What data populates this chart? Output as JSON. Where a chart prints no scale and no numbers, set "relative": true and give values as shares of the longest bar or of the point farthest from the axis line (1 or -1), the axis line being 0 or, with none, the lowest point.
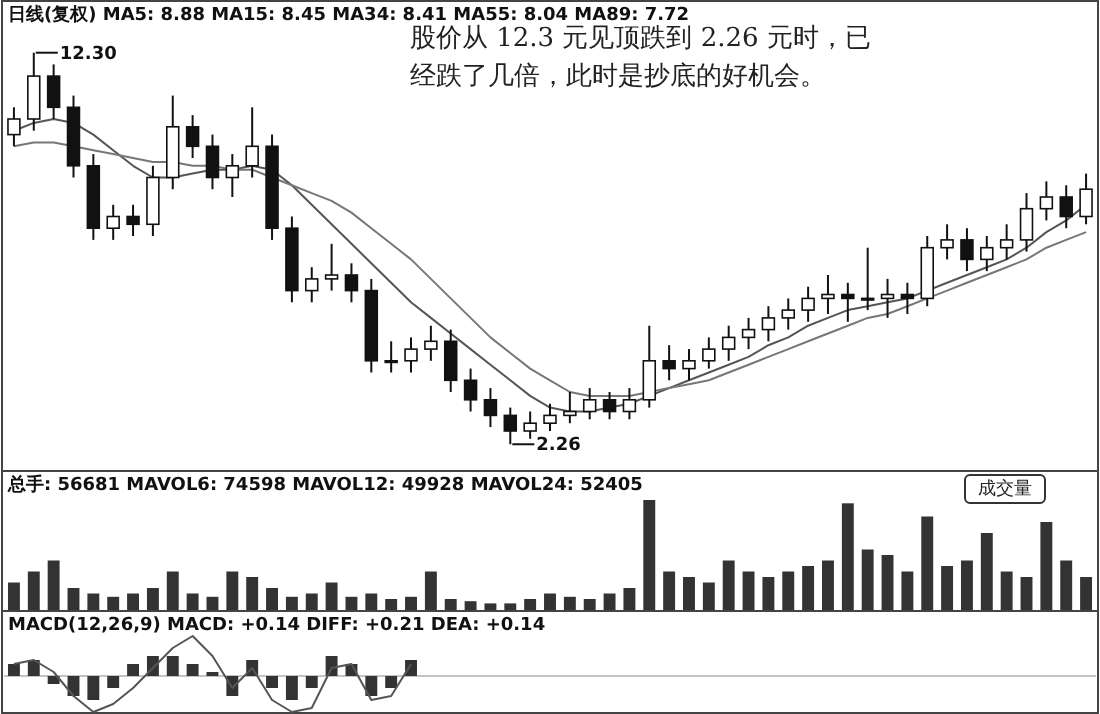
{
  "chart_data": [
    {
      "type": "candlestick",
      "title": "日线(复权) MA5: 8.88 MA15: 8.45 MA34: 8.41 MA55: 8.04 MA89: 7.72",
      "categories": [
        null,
        null,
        null,
        null,
        null,
        null,
        null,
        null,
        null,
        null,
        null,
        null,
        null,
        null,
        null,
        null,
        null,
        null,
        null,
        null,
        null,
        null,
        null,
        null,
        null,
        null,
        null,
        null,
        null,
        null,
        null,
        null,
        null,
        null,
        null,
        null,
        null,
        null,
        null,
        null,
        null,
        null,
        null,
        null,
        null,
        null,
        null,
        null,
        null,
        null,
        null,
        null,
        null,
        null,
        null
      ],
      "ohlc": [
        [
          10.2,
          10.9,
          9.9,
          10.6
        ],
        [
          10.6,
          12.3,
          10.3,
          11.7
        ],
        [
          11.7,
          12.0,
          10.6,
          10.9
        ],
        [
          10.9,
          11.2,
          9.1,
          9.4
        ],
        [
          9.4,
          9.7,
          7.5,
          7.8
        ],
        [
          7.8,
          8.4,
          7.5,
          8.1
        ],
        [
          8.1,
          8.4,
          7.6,
          7.9
        ],
        [
          7.9,
          9.4,
          7.6,
          9.1
        ],
        [
          9.1,
          11.2,
          8.8,
          10.4
        ],
        [
          10.4,
          10.7,
          9.6,
          9.9
        ],
        [
          9.9,
          10.2,
          8.8,
          9.1
        ],
        [
          9.1,
          9.7,
          8.6,
          9.4
        ],
        [
          9.4,
          10.9,
          9.1,
          9.9
        ],
        [
          9.9,
          10.2,
          7.5,
          7.8
        ],
        [
          7.8,
          8.1,
          5.9,
          6.2
        ],
        [
          6.2,
          6.8,
          5.9,
          6.5
        ],
        [
          6.5,
          7.4,
          6.2,
          6.6
        ],
        [
          6.6,
          6.9,
          5.9,
          6.2
        ],
        [
          6.2,
          6.5,
          4.1,
          4.4
        ],
        [
          4.4,
          4.9,
          4.1,
          4.4
        ],
        [
          4.4,
          5.0,
          4.1,
          4.7
        ],
        [
          4.7,
          5.3,
          4.4,
          4.9
        ],
        [
          4.9,
          5.2,
          3.6,
          3.9
        ],
        [
          3.9,
          4.2,
          3.1,
          3.4
        ],
        [
          3.4,
          3.7,
          2.7,
          3.0
        ],
        [
          3.0,
          3.2,
          2.26,
          2.6
        ],
        [
          2.6,
          3.1,
          2.4,
          2.8
        ],
        [
          2.8,
          3.3,
          2.6,
          3.0
        ],
        [
          3.0,
          3.6,
          2.8,
          3.1
        ],
        [
          3.1,
          3.7,
          2.9,
          3.4
        ],
        [
          3.4,
          3.6,
          2.9,
          3.1
        ],
        [
          3.1,
          3.7,
          2.9,
          3.4
        ],
        [
          3.4,
          5.3,
          3.2,
          4.4
        ],
        [
          4.4,
          4.8,
          3.9,
          4.2
        ],
        [
          4.2,
          4.7,
          3.9,
          4.4
        ],
        [
          4.4,
          5.0,
          4.2,
          4.7
        ],
        [
          4.7,
          5.3,
          4.4,
          5.0
        ],
        [
          5.0,
          5.5,
          4.7,
          5.2
        ],
        [
          5.2,
          5.8,
          4.9,
          5.5
        ],
        [
          5.5,
          6.0,
          5.2,
          5.7
        ],
        [
          5.7,
          6.3,
          5.4,
          6.0
        ],
        [
          6.0,
          6.6,
          5.6,
          6.1
        ],
        [
          6.1,
          6.4,
          5.4,
          6.0
        ],
        [
          6.0,
          7.3,
          5.7,
          6.0
        ],
        [
          6.0,
          6.5,
          5.5,
          6.1
        ],
        [
          6.1,
          6.4,
          5.6,
          6.0
        ],
        [
          6.0,
          7.6,
          5.8,
          7.3
        ],
        [
          7.3,
          7.9,
          7.0,
          7.5
        ],
        [
          7.5,
          7.8,
          6.7,
          7.0
        ],
        [
          7.0,
          7.6,
          6.7,
          7.3
        ],
        [
          7.3,
          7.9,
          7.0,
          7.5
        ],
        [
          7.5,
          8.7,
          7.2,
          8.3
        ],
        [
          8.3,
          9.0,
          8.0,
          8.6
        ],
        [
          8.6,
          8.9,
          7.8,
          8.1
        ],
        [
          8.1,
          9.2,
          7.9,
          8.8
        ]
      ],
      "series": [
        {
          "type": "line",
          "color": "#555555",
          "values": [
            10.3,
            10.5,
            10.6,
            10.5,
            10.2,
            9.8,
            9.4,
            9.1,
            9.1,
            9.2,
            9.3,
            9.3,
            9.4,
            9.3,
            8.9,
            8.4,
            7.9,
            7.4,
            6.9,
            6.4,
            5.9,
            5.5,
            5.1,
            4.7,
            4.3,
            3.9,
            3.5,
            3.2,
            3.1,
            3.1,
            3.2,
            3.3,
            3.5,
            3.7,
            3.9,
            4.1,
            4.3,
            4.5,
            4.8,
            5.0,
            5.3,
            5.5,
            5.7,
            5.8,
            5.9,
            6.0,
            6.2,
            6.4,
            6.6,
            6.8,
            7.0,
            7.3,
            7.7,
            8.0,
            8.4
          ]
        },
        {
          "type": "line",
          "color": "#777777",
          "values": [
            9.9,
            10.0,
            10.0,
            9.9,
            9.8,
            9.7,
            9.6,
            9.5,
            9.5,
            9.4,
            9.4,
            9.3,
            9.3,
            9.1,
            8.9,
            8.7,
            8.5,
            8.2,
            7.8,
            7.4,
            7.0,
            6.5,
            6.0,
            5.5,
            5.0,
            4.6,
            4.2,
            3.9,
            3.6,
            3.5,
            3.5,
            3.5,
            3.6,
            3.7,
            3.8,
            3.9,
            4.1,
            4.3,
            4.5,
            4.7,
            4.9,
            5.1,
            5.3,
            5.5,
            5.6,
            5.8,
            6.0,
            6.2,
            6.4,
            6.6,
            6.8,
            7.0,
            7.3,
            7.5,
            7.7
          ]
        }
      ],
      "ylim": [
        1.6,
        13.6
      ],
      "annotations": [
        "股价从 12.3 元见顶跌到 2.26 元时，已经跌了几倍，此时是抄底的好机会。",
        "12.30",
        "2.26"
      ]
    },
    {
      "type": "bar",
      "title": "总手: 56681 MAVOL6: 74598 MAVOL12: 49928 MAVOL24: 52405",
      "annotations": [
        "成交量"
      ],
      "relative": true,
      "color": "#333333",
      "categories": [
        null,
        null,
        null,
        null,
        null,
        null,
        null,
        null,
        null,
        null,
        null,
        null,
        null,
        null,
        null,
        null,
        null,
        null,
        null,
        null,
        null,
        null,
        null,
        null,
        null,
        null,
        null,
        null,
        null,
        null,
        null,
        null,
        null,
        null,
        null,
        null,
        null,
        null,
        null,
        null,
        null,
        null,
        null,
        null,
        null,
        null,
        null,
        null,
        null,
        null,
        null,
        null,
        null,
        null,
        null
      ],
      "values": [
        0.25,
        0.35,
        0.45,
        0.2,
        0.15,
        0.12,
        0.15,
        0.2,
        0.35,
        0.15,
        0.12,
        0.35,
        0.3,
        0.2,
        0.12,
        0.15,
        0.25,
        0.12,
        0.15,
        0.1,
        0.12,
        0.35,
        0.1,
        0.08,
        0.06,
        0.06,
        0.1,
        0.15,
        0.12,
        0.1,
        0.15,
        0.2,
        1.0,
        0.35,
        0.3,
        0.25,
        0.45,
        0.35,
        0.3,
        0.35,
        0.4,
        0.45,
        0.97,
        0.55,
        0.5,
        0.35,
        0.85,
        0.4,
        0.45,
        0.7,
        0.35,
        0.3,
        0.8,
        0.45,
        0.3
      ]
    },
    {
      "type": "bar",
      "title": "MACD(12,26,9) MACD: +0.14 DIFF: +0.21 DEA: +0.14",
      "relative": true,
      "categories": [
        null,
        null,
        null,
        null,
        null,
        null,
        null,
        null,
        null,
        null,
        null,
        null,
        null,
        null,
        null,
        null,
        null,
        null,
        null,
        null,
        null,
        null,
        null,
        null,
        null,
        null,
        null,
        null,
        null,
        null,
        null,
        null,
        null,
        null,
        null,
        null,
        null,
        null,
        null,
        null,
        null,
        null,
        null,
        null,
        null,
        null,
        null,
        null,
        null,
        null,
        null,
        null,
        null,
        null,
        null
      ],
      "series": [
        {
          "type": "bar",
          "color": "#333333",
          "values": [
            0.3,
            0.4,
            -0.2,
            -0.5,
            -0.6,
            -0.3,
            0.3,
            0.5,
            0.5,
            0.3,
            0.1,
            -0.5,
            0.4,
            -0.3,
            -0.6,
            -0.3,
            0.5,
            0.3,
            -0.5,
            -0.3,
            0.4,
            null,
            null,
            null,
            null,
            null,
            null,
            null,
            null,
            null,
            null,
            null,
            null,
            null,
            null,
            null,
            null,
            null,
            null,
            null,
            null,
            null,
            null,
            null,
            null,
            null,
            null,
            null,
            null,
            null,
            null,
            null,
            null,
            null,
            null
          ]
        },
        {
          "type": "line",
          "color": "#555555",
          "values": [
            0.3,
            0.4,
            0.1,
            -0.5,
            -0.9,
            -0.7,
            -0.3,
            0.2,
            0.7,
            1.0,
            0.5,
            -0.3,
            0.2,
            -0.6,
            -0.9,
            -0.8,
            0.2,
            0.3,
            -0.6,
            -0.5,
            0.3,
            null,
            null,
            null,
            null,
            null,
            null,
            null,
            null,
            null,
            null,
            null,
            null,
            null,
            null,
            null,
            null,
            null,
            null,
            null,
            null,
            null,
            null,
            null,
            null,
            null,
            null,
            null,
            null,
            null,
            null,
            null,
            null,
            null,
            null
          ]
        }
      ]
    }
  ]
}
